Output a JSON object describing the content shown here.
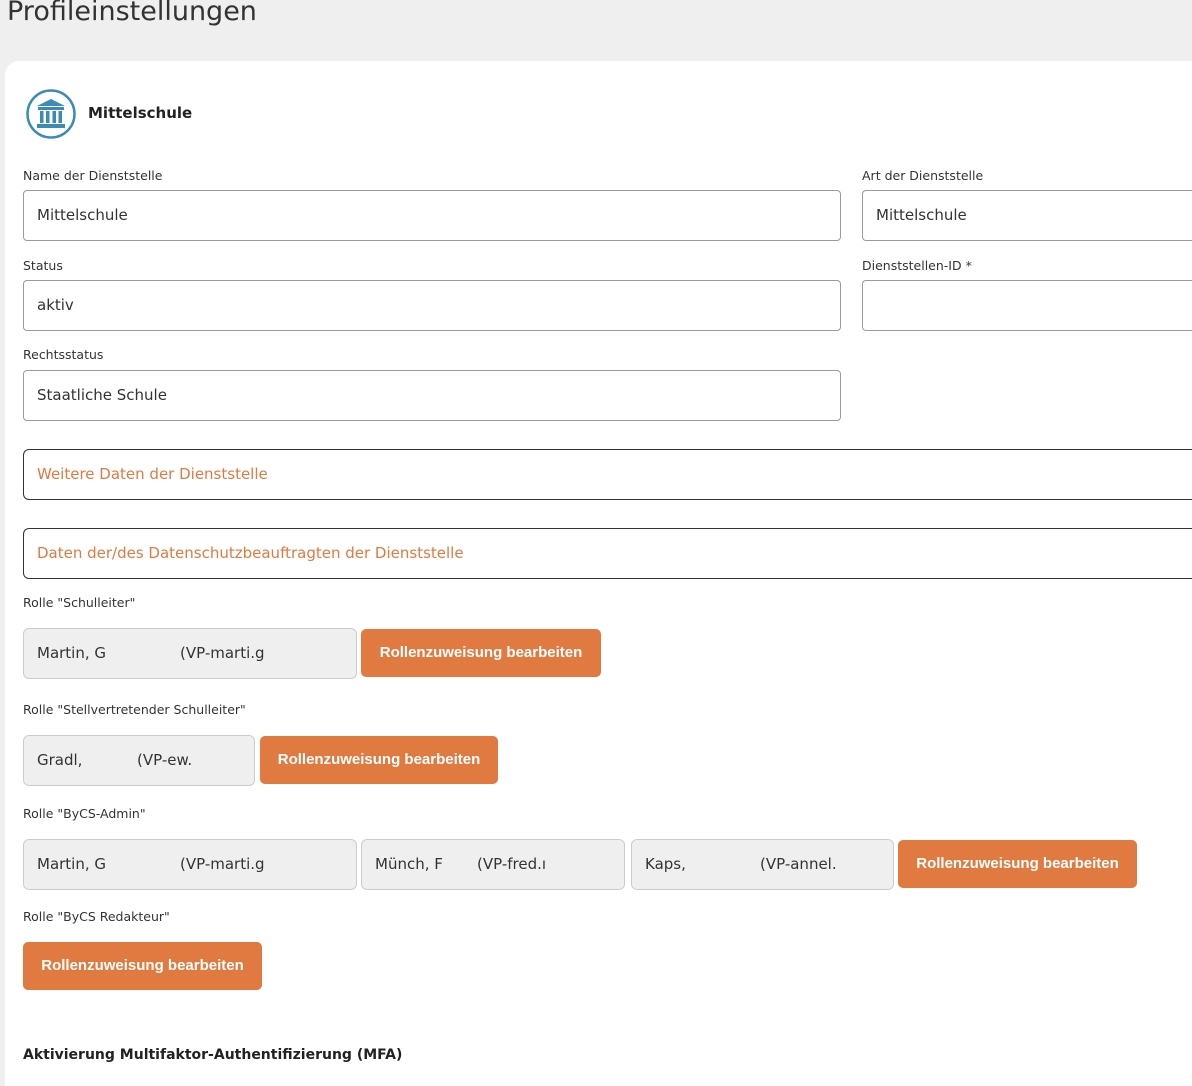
{
  "page": {
    "title": "Profileinstellungen"
  },
  "header": {
    "name": "Mittelschule",
    "icon": "institution-icon",
    "icon_color": "#3a8bb5"
  },
  "fields": {
    "name_label": "Name der Dienststelle",
    "name_value": "Mittelschule",
    "art_label": "Art der Dienststelle",
    "art_value": "Mittelschule",
    "status_label": "Status",
    "status_value": "aktiv",
    "id_label": "Dienststellen-ID *",
    "id_value": "",
    "recht_label": "Rechtsstatus",
    "recht_value": "Staatliche Schule"
  },
  "sections": {
    "weitere": "Weitere Daten der Dienststelle",
    "datenschutz": "Daten der/des Datenschutzbeauftragten der Dienststelle"
  },
  "roles": [
    {
      "label": "Rolle \"Schulleiter\"",
      "members": [
        {
          "name": "Martin, G",
          "id": "(VP-marti.g"
        }
      ]
    },
    {
      "label": "Rolle \"Stellvertretender Schulleiter\"",
      "members": [
        {
          "name": "Gradl,",
          "id": "(VP-ew."
        }
      ]
    },
    {
      "label": "Rolle \"ByCS-Admin\"",
      "members": [
        {
          "name": "Martin, G",
          "id": "(VP-marti.g"
        },
        {
          "name": "Münch, F",
          "id": "(VP-fred.ı"
        },
        {
          "name": "Kaps,",
          "id": "(VP-annel."
        }
      ]
    },
    {
      "label": "Rolle \"ByCS Redakteur\"",
      "members": []
    }
  ],
  "edit_button": "Rollenzuweisung bearbeiten",
  "mfa": {
    "title": "Aktivierung Multifaktor-Authentifizierung (MFA)"
  },
  "accent": "#e07a40"
}
